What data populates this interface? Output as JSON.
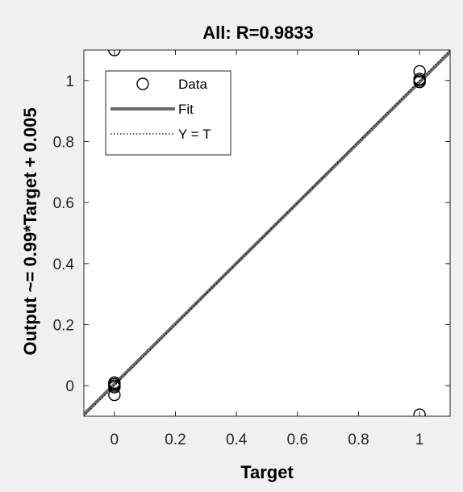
{
  "chart_data": {
    "type": "scatter",
    "title": "All: R=0.9833",
    "xlabel": "Target",
    "ylabel": "Output ~= 0.99*Target + 0.005",
    "xlim": [
      -0.1,
      1.1
    ],
    "ylim": [
      -0.1,
      1.1
    ],
    "xticks": [
      0,
      0.2,
      0.4,
      0.6,
      0.8,
      1
    ],
    "yticks": [
      0,
      0.2,
      0.4,
      0.6,
      0.8,
      1
    ],
    "xtick_labels": [
      "0",
      "0.2",
      "0.4",
      "0.6",
      "0.8",
      "1"
    ],
    "ytick_labels": [
      "0",
      "0.2",
      "0.4",
      "0.6",
      "0.8",
      "1"
    ],
    "grid": false,
    "legend_position": "top-left",
    "series": [
      {
        "name": "Data",
        "kind": "markers",
        "marker": "open-circle",
        "color": "#000000",
        "points": [
          {
            "x": 0,
            "y": 1.1
          },
          {
            "x": 0,
            "y": 0.01
          },
          {
            "x": 0,
            "y": 0.005
          },
          {
            "x": 0,
            "y": 0.0
          },
          {
            "x": 0,
            "y": -0.005
          },
          {
            "x": 0,
            "y": -0.03
          },
          {
            "x": 1,
            "y": 1.03
          },
          {
            "x": 1,
            "y": 1.005
          },
          {
            "x": 1,
            "y": 1.0
          },
          {
            "x": 1,
            "y": 0.995
          },
          {
            "x": 1,
            "y": -0.095
          }
        ]
      },
      {
        "name": "Fit",
        "kind": "line",
        "slope": 0.99,
        "intercept": 0.005,
        "color": "#6b6b6b"
      },
      {
        "name": "Y = T",
        "kind": "dotted-line",
        "slope": 1,
        "intercept": 0,
        "color": "#000000"
      }
    ]
  }
}
